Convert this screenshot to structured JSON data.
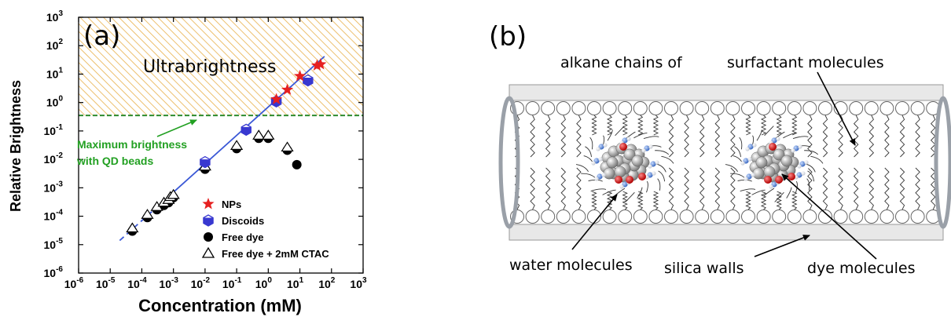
{
  "panel_a": {
    "label": "(a)",
    "region_label": "Ultrabrightness",
    "annotation_line1": "Maximum brightness",
    "annotation_line2": "with QD beads"
  },
  "panel_b": {
    "label": "(b)",
    "labels": {
      "alkane_chains": "alkane chains of",
      "surfactant": "surfactant molecules",
      "water": "water molecules",
      "silica": "silica walls",
      "dye": "dye molecules"
    }
  },
  "colors": {
    "hatch": "#e8b04a",
    "threshold": "#2e8b2e",
    "fit_line": "#3a58d6",
    "nps": "#e62020",
    "discoids": "#3838d0",
    "annotation": "#22a022",
    "arrow": "#22a022"
  },
  "chart_data": {
    "type": "scatter",
    "xlabel": "Concentration (mM)",
    "ylabel": "Relative Brightness",
    "x_scale": "log",
    "y_scale": "log",
    "xlim": [
      1e-06,
      1000.0
    ],
    "ylim": [
      1e-06,
      1000.0
    ],
    "x_ticks": [
      "10-6",
      "10-5",
      "10-4",
      "10-3",
      "10-2",
      "10-1",
      "100",
      "101",
      "102",
      "103"
    ],
    "y_ticks": [
      "10-6",
      "10-5",
      "10-4",
      "10-3",
      "10-2",
      "10-1",
      "100",
      "101",
      "102",
      "103"
    ],
    "threshold_brightness": 0.35,
    "fit_line": {
      "slope": 1,
      "dashed_range": [
        2e-05,
        0.001
      ],
      "solid_range": [
        0.001,
        60
      ],
      "y_at_x1": 0.7
    },
    "legend_position": "bottom-right",
    "series": [
      {
        "name": "NPs",
        "marker": "star",
        "points": [
          [
            1.8,
            1.3
          ],
          [
            4,
            2.8
          ],
          [
            10,
            8.5
          ],
          [
            35,
            20
          ],
          [
            45,
            22
          ]
        ]
      },
      {
        "name": "Discoids",
        "marker": "hexagon",
        "points": [
          [
            0.01,
            0.008
          ],
          [
            0.2,
            0.11
          ],
          [
            1.8,
            1.1
          ],
          [
            18,
            6
          ]
        ]
      },
      {
        "name": "Free dye",
        "marker": "filled-circle",
        "points": [
          [
            5e-05,
            3e-05
          ],
          [
            0.00015,
            9e-05
          ],
          [
            0.0003,
            0.00017
          ],
          [
            0.0005,
            0.00024
          ],
          [
            0.0007,
            0.0003
          ],
          [
            0.0008,
            0.00038
          ],
          [
            0.001,
            0.00045
          ],
          [
            0.01,
            0.0045
          ],
          [
            0.1,
            0.024
          ],
          [
            0.5,
            0.055
          ],
          [
            1,
            0.055
          ],
          [
            4,
            0.021
          ],
          [
            8,
            0.0065
          ]
        ]
      },
      {
        "name": "Free dye + 2mM CTAC",
        "marker": "open-triangle",
        "points": [
          [
            5e-05,
            3e-05
          ],
          [
            0.00015,
            9e-05
          ],
          [
            0.0003,
            0.00017
          ],
          [
            0.0005,
            0.00024
          ],
          [
            0.0007,
            0.0003
          ],
          [
            0.0008,
            0.00038
          ],
          [
            0.001,
            0.00045
          ],
          [
            0.01,
            0.0045
          ],
          [
            0.1,
            0.024
          ],
          [
            0.5,
            0.055
          ],
          [
            1,
            0.055
          ],
          [
            4,
            0.021
          ]
        ]
      }
    ]
  }
}
